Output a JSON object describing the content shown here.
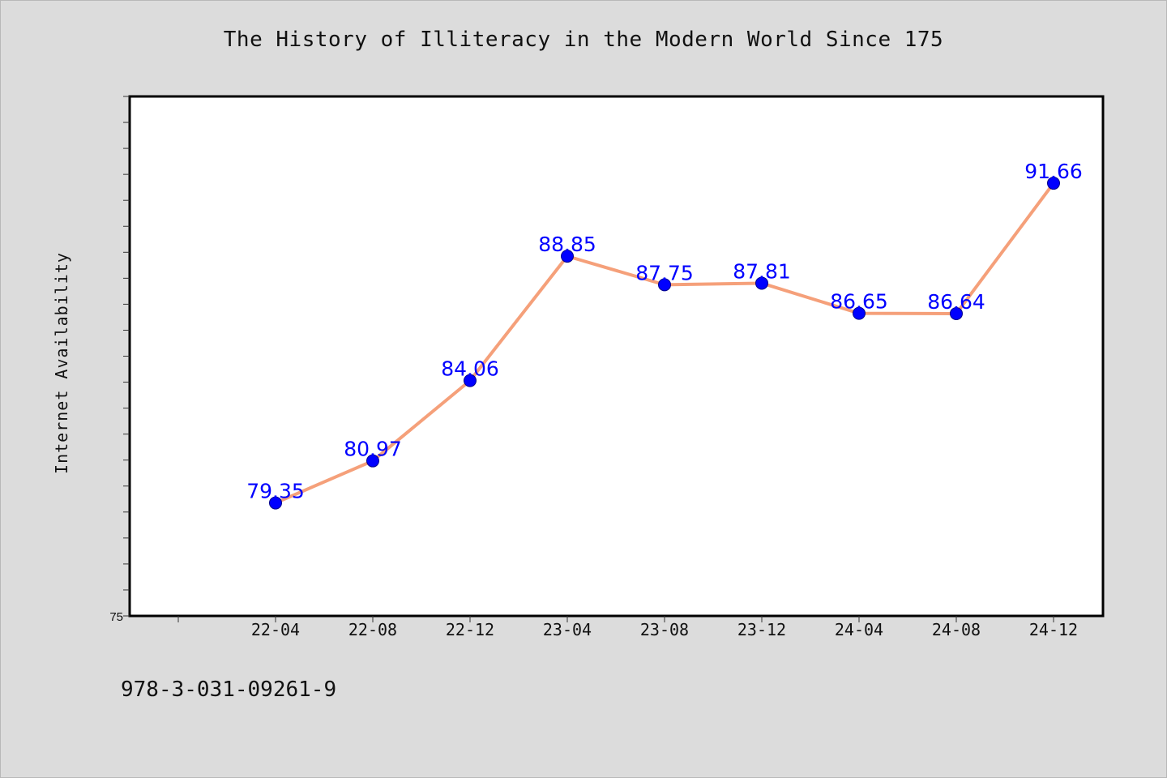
{
  "chart_data": {
    "type": "line",
    "title": "The History of Illiteracy in the Modern World Since 175",
    "ylabel": "Internet Availability",
    "xlabel": "",
    "categories": [
      "22-04",
      "22-08",
      "22-12",
      "23-04",
      "23-08",
      "23-12",
      "24-04",
      "24-08",
      "24-12"
    ],
    "series": [
      {
        "values": [
          79.35,
          80.97,
          84.06,
          88.85,
          87.75,
          87.81,
          86.65,
          86.64,
          91.66
        ],
        "data_labels": [
          "79.35",
          "80.97",
          "84.06",
          "88.85",
          "87.75",
          "87.81",
          "86.65",
          "86.64",
          "91.66"
        ]
      }
    ],
    "y_tick_label": "75",
    "ylim": [
      75,
      95
    ],
    "grid": false,
    "legend": "none",
    "colors": {
      "line": "#f5a07a",
      "marker": "#0000ff",
      "data_label": "#0000ff",
      "plot_bg": "#ffffff",
      "page_bg": "#dcdcdc"
    }
  },
  "footer_text": "978-3-031-09261-9"
}
